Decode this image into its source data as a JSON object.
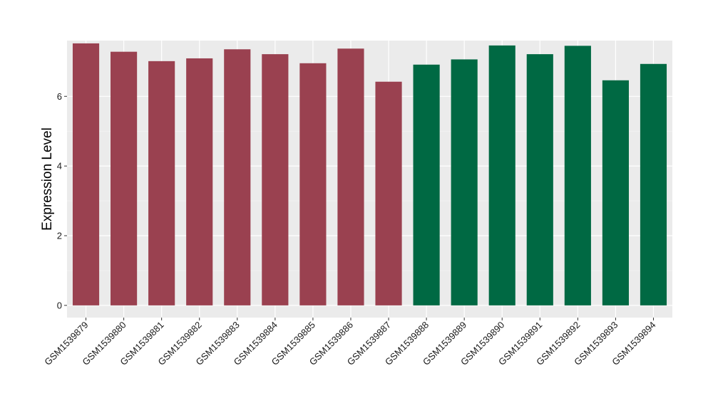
{
  "chart_data": {
    "type": "bar",
    "ylabel": "Expression Level",
    "xlabel": "",
    "ylim": [
      -0.35,
      7.6
    ],
    "yticks": [
      0,
      2,
      4,
      6
    ],
    "grid": true,
    "legend": "none",
    "panel_color": "#ebebeb",
    "categories": [
      "GSM1539879",
      "GSM1539880",
      "GSM1539881",
      "GSM1539882",
      "GSM1539883",
      "GSM1539884",
      "GSM1539885",
      "GSM1539886",
      "GSM1539887",
      "GSM1539888",
      "GSM1539889",
      "GSM1539890",
      "GSM1539891",
      "GSM1539892",
      "GSM1539893",
      "GSM1539894"
    ],
    "values": [
      7.52,
      7.28,
      7.01,
      7.09,
      7.35,
      7.21,
      6.95,
      7.37,
      6.42,
      6.91,
      7.06,
      7.46,
      7.21,
      7.45,
      6.46,
      6.93
    ],
    "groups": [
      "a",
      "a",
      "a",
      "a",
      "a",
      "a",
      "a",
      "a",
      "a",
      "b",
      "b",
      "b",
      "b",
      "b",
      "b",
      "b"
    ],
    "group_colors": {
      "a": "#9a4150",
      "b": "#006943"
    }
  }
}
